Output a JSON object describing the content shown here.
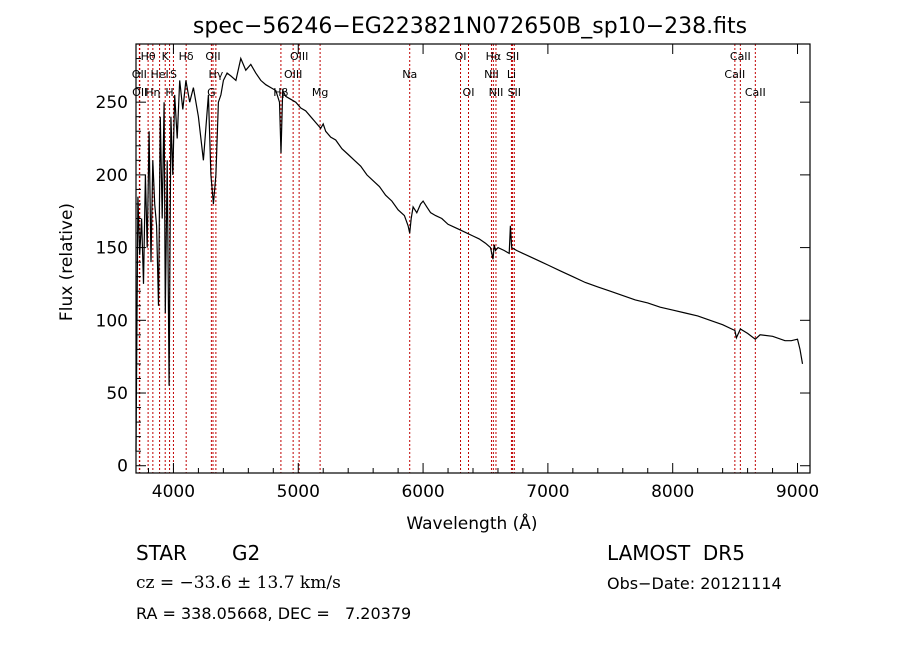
{
  "chart_data": {
    "type": "line",
    "title": "spec−56246−EG223821N072650B_sp10−238.fits",
    "xlabel": "Wavelength (Å)",
    "ylabel": "Flux (relative)",
    "xlim": [
      3700,
      9100
    ],
    "ylim": [
      -5,
      290
    ],
    "xticks": [
      4000,
      5000,
      6000,
      7000,
      8000,
      9000
    ],
    "yticks": [
      0,
      50,
      100,
      150,
      200,
      250
    ],
    "grid": false,
    "line_color": "#000000",
    "marker_color": "#c00000",
    "series": [
      {
        "values_x": [
          3700,
          3715,
          3730,
          3745,
          3760,
          3775,
          3790,
          3805,
          3820,
          3835,
          3850,
          3865,
          3880,
          3895,
          3910,
          3925,
          3935,
          3950,
          3965,
          3980,
          3995,
          4010,
          4030,
          4050,
          4075,
          4100,
          4130,
          4160,
          4200,
          4240,
          4280,
          4300,
          4320,
          4340,
          4360,
          4380,
          4400,
          4430,
          4460,
          4500,
          4540,
          4580,
          4620,
          4660,
          4700,
          4740,
          4780,
          4820,
          4850,
          4862,
          4875,
          4900,
          4940,
          4980,
          5020,
          5060,
          5100,
          5140,
          5180,
          5200,
          5220,
          5260,
          5300,
          5350,
          5400,
          5450,
          5500,
          5550,
          5600,
          5650,
          5700,
          5750,
          5800,
          5850,
          5880,
          5893,
          5905,
          5920,
          5950,
          5980,
          6000,
          6030,
          6060,
          6100,
          6150,
          6200,
          6250,
          6300,
          6350,
          6400,
          6450,
          6500,
          6540,
          6560,
          6570,
          6580,
          6600,
          6650,
          6690,
          6700,
          6710,
          6750,
          6800,
          6850,
          6900,
          6950,
          7000,
          7100,
          7200,
          7300,
          7400,
          7500,
          7600,
          7700,
          7800,
          7900,
          8000,
          8100,
          8200,
          8300,
          8400,
          8498,
          8510,
          8542,
          8600,
          8662,
          8700,
          8800,
          8900,
          8950,
          9000,
          9020,
          9040
        ],
        "values_y": [
          10,
          185,
          145,
          170,
          125,
          200,
          150,
          230,
          140,
          210,
          180,
          165,
          110,
          240,
          170,
          250,
          105,
          210,
          55,
          240,
          200,
          255,
          225,
          265,
          245,
          265,
          250,
          260,
          240,
          210,
          255,
          200,
          180,
          200,
          250,
          255,
          265,
          270,
          268,
          265,
          280,
          272,
          276,
          270,
          265,
          262,
          260,
          258,
          250,
          215,
          258,
          254,
          252,
          250,
          246,
          244,
          240,
          236,
          232,
          235,
          230,
          226,
          224,
          218,
          214,
          210,
          206,
          200,
          196,
          192,
          186,
          182,
          176,
          172,
          165,
          160,
          170,
          178,
          174,
          180,
          182,
          178,
          174,
          172,
          170,
          166,
          164,
          162,
          160,
          158,
          156,
          153,
          150,
          142,
          152,
          148,
          150,
          148,
          146,
          165,
          150,
          148,
          146,
          144,
          142,
          140,
          138,
          134,
          130,
          126,
          123,
          120,
          117,
          114,
          112,
          109,
          107,
          105,
          103,
          100,
          97,
          93,
          88,
          94,
          91,
          87,
          90,
          89,
          86,
          86,
          87,
          80,
          70
        ]
      }
    ],
    "lines": [
      {
        "label": "Hθ",
        "x": 3797,
        "row": 0
      },
      {
        "label": "OII",
        "x": 3727,
        "row": 1
      },
      {
        "label": "OII",
        "x": 3730,
        "row": 2
      },
      {
        "label": "K",
        "x": 3934,
        "row": 0
      },
      {
        "label": "HeI",
        "x": 3889,
        "row": 1
      },
      {
        "label": "Hη",
        "x": 3835,
        "row": 2
      },
      {
        "label": "Hδ",
        "x": 4102,
        "row": 0
      },
      {
        "label": "S",
        "x": 4000,
        "row": 1
      },
      {
        "label": "H",
        "x": 3969,
        "row": 2
      },
      {
        "label": "OII",
        "x": 4317,
        "row": 0
      },
      {
        "label": "Hγ",
        "x": 4340,
        "row": 1
      },
      {
        "label": "G",
        "x": 4304,
        "row": 2
      },
      {
        "label": "OIII",
        "x": 5007,
        "row": 0
      },
      {
        "label": "OIII",
        "x": 4959,
        "row": 1
      },
      {
        "label": "Hβ",
        "x": 4861,
        "row": 2
      },
      {
        "label": "Na",
        "x": 5893,
        "row": 1
      },
      {
        "label": "Mg",
        "x": 5175,
        "row": 2
      },
      {
        "label": "OI",
        "x": 6300,
        "row": 0
      },
      {
        "label": "OI",
        "x": 6364,
        "row": 2
      },
      {
        "label": "Hα",
        "x": 6563,
        "row": 0
      },
      {
        "label": "NII",
        "x": 6548,
        "row": 1
      },
      {
        "label": "NII",
        "x": 6584,
        "row": 2
      },
      {
        "label": "SII",
        "x": 6717,
        "row": 0
      },
      {
        "label": "Li",
        "x": 6708,
        "row": 1
      },
      {
        "label": "SII",
        "x": 6731,
        "row": 2
      },
      {
        "label": "CaII",
        "x": 8542,
        "row": 0
      },
      {
        "label": "CaII",
        "x": 8498,
        "row": 1
      },
      {
        "label": "CaII",
        "x": 8662,
        "row": 2
      }
    ]
  },
  "info": {
    "type_label": "STAR",
    "subclass": "G2",
    "survey": "LAMOST  DR5",
    "cz": "cz = −33.6 ± 13.7 km/s",
    "obs_date": "Obs−Date: 20121114",
    "coords": "RA = 338.05668, DEC =   7.20379"
  }
}
